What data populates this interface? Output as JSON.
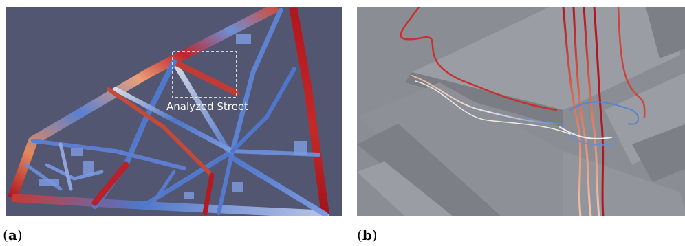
{
  "figure": {
    "panel_a": {
      "caption_label": "a",
      "annotation": "Analyzed Street",
      "background": "#525670"
    },
    "panel_b": {
      "caption_label": "b",
      "background": "#878a90"
    },
    "colors": {
      "low": "#4f76c9",
      "mid": "#d9dde8",
      "high": "#b1151f"
    }
  }
}
